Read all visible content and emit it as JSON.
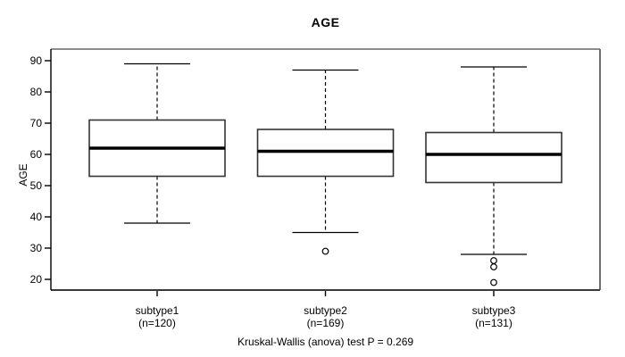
{
  "title": "AGE",
  "y_axis_label": "AGE",
  "caption": "Kruskal-Wallis (anova) test P = 0.269",
  "chart_data": {
    "type": "boxplot",
    "title": "AGE",
    "ylabel": "AGE",
    "xlabel": "",
    "ylim": [
      20,
      90
    ],
    "yticks": [
      20,
      30,
      40,
      50,
      60,
      70,
      80,
      90
    ],
    "grid": false,
    "footnote": "Kruskal-Wallis (anova) test P = 0.269",
    "groups": [
      {
        "label": "subtype1",
        "sublabel": "(n=120)",
        "n": 120,
        "whisker_low": 38,
        "q1": 53,
        "median": 62,
        "q3": 71,
        "whisker_high": 89,
        "outliers": []
      },
      {
        "label": "subtype2",
        "sublabel": "(n=169)",
        "n": 169,
        "whisker_low": 35,
        "q1": 53,
        "median": 61,
        "q3": 68,
        "whisker_high": 87,
        "outliers": [
          29
        ]
      },
      {
        "label": "subtype3",
        "sublabel": "(n=131)",
        "n": 131,
        "whisker_low": 28,
        "q1": 51,
        "median": 60,
        "q3": 67,
        "whisker_high": 88,
        "outliers": [
          26,
          24,
          19
        ]
      }
    ],
    "colors": {
      "line": "#000000",
      "box_border": "#333333",
      "frame_gray": "#8c8c8c",
      "background": "#ffffff"
    }
  }
}
